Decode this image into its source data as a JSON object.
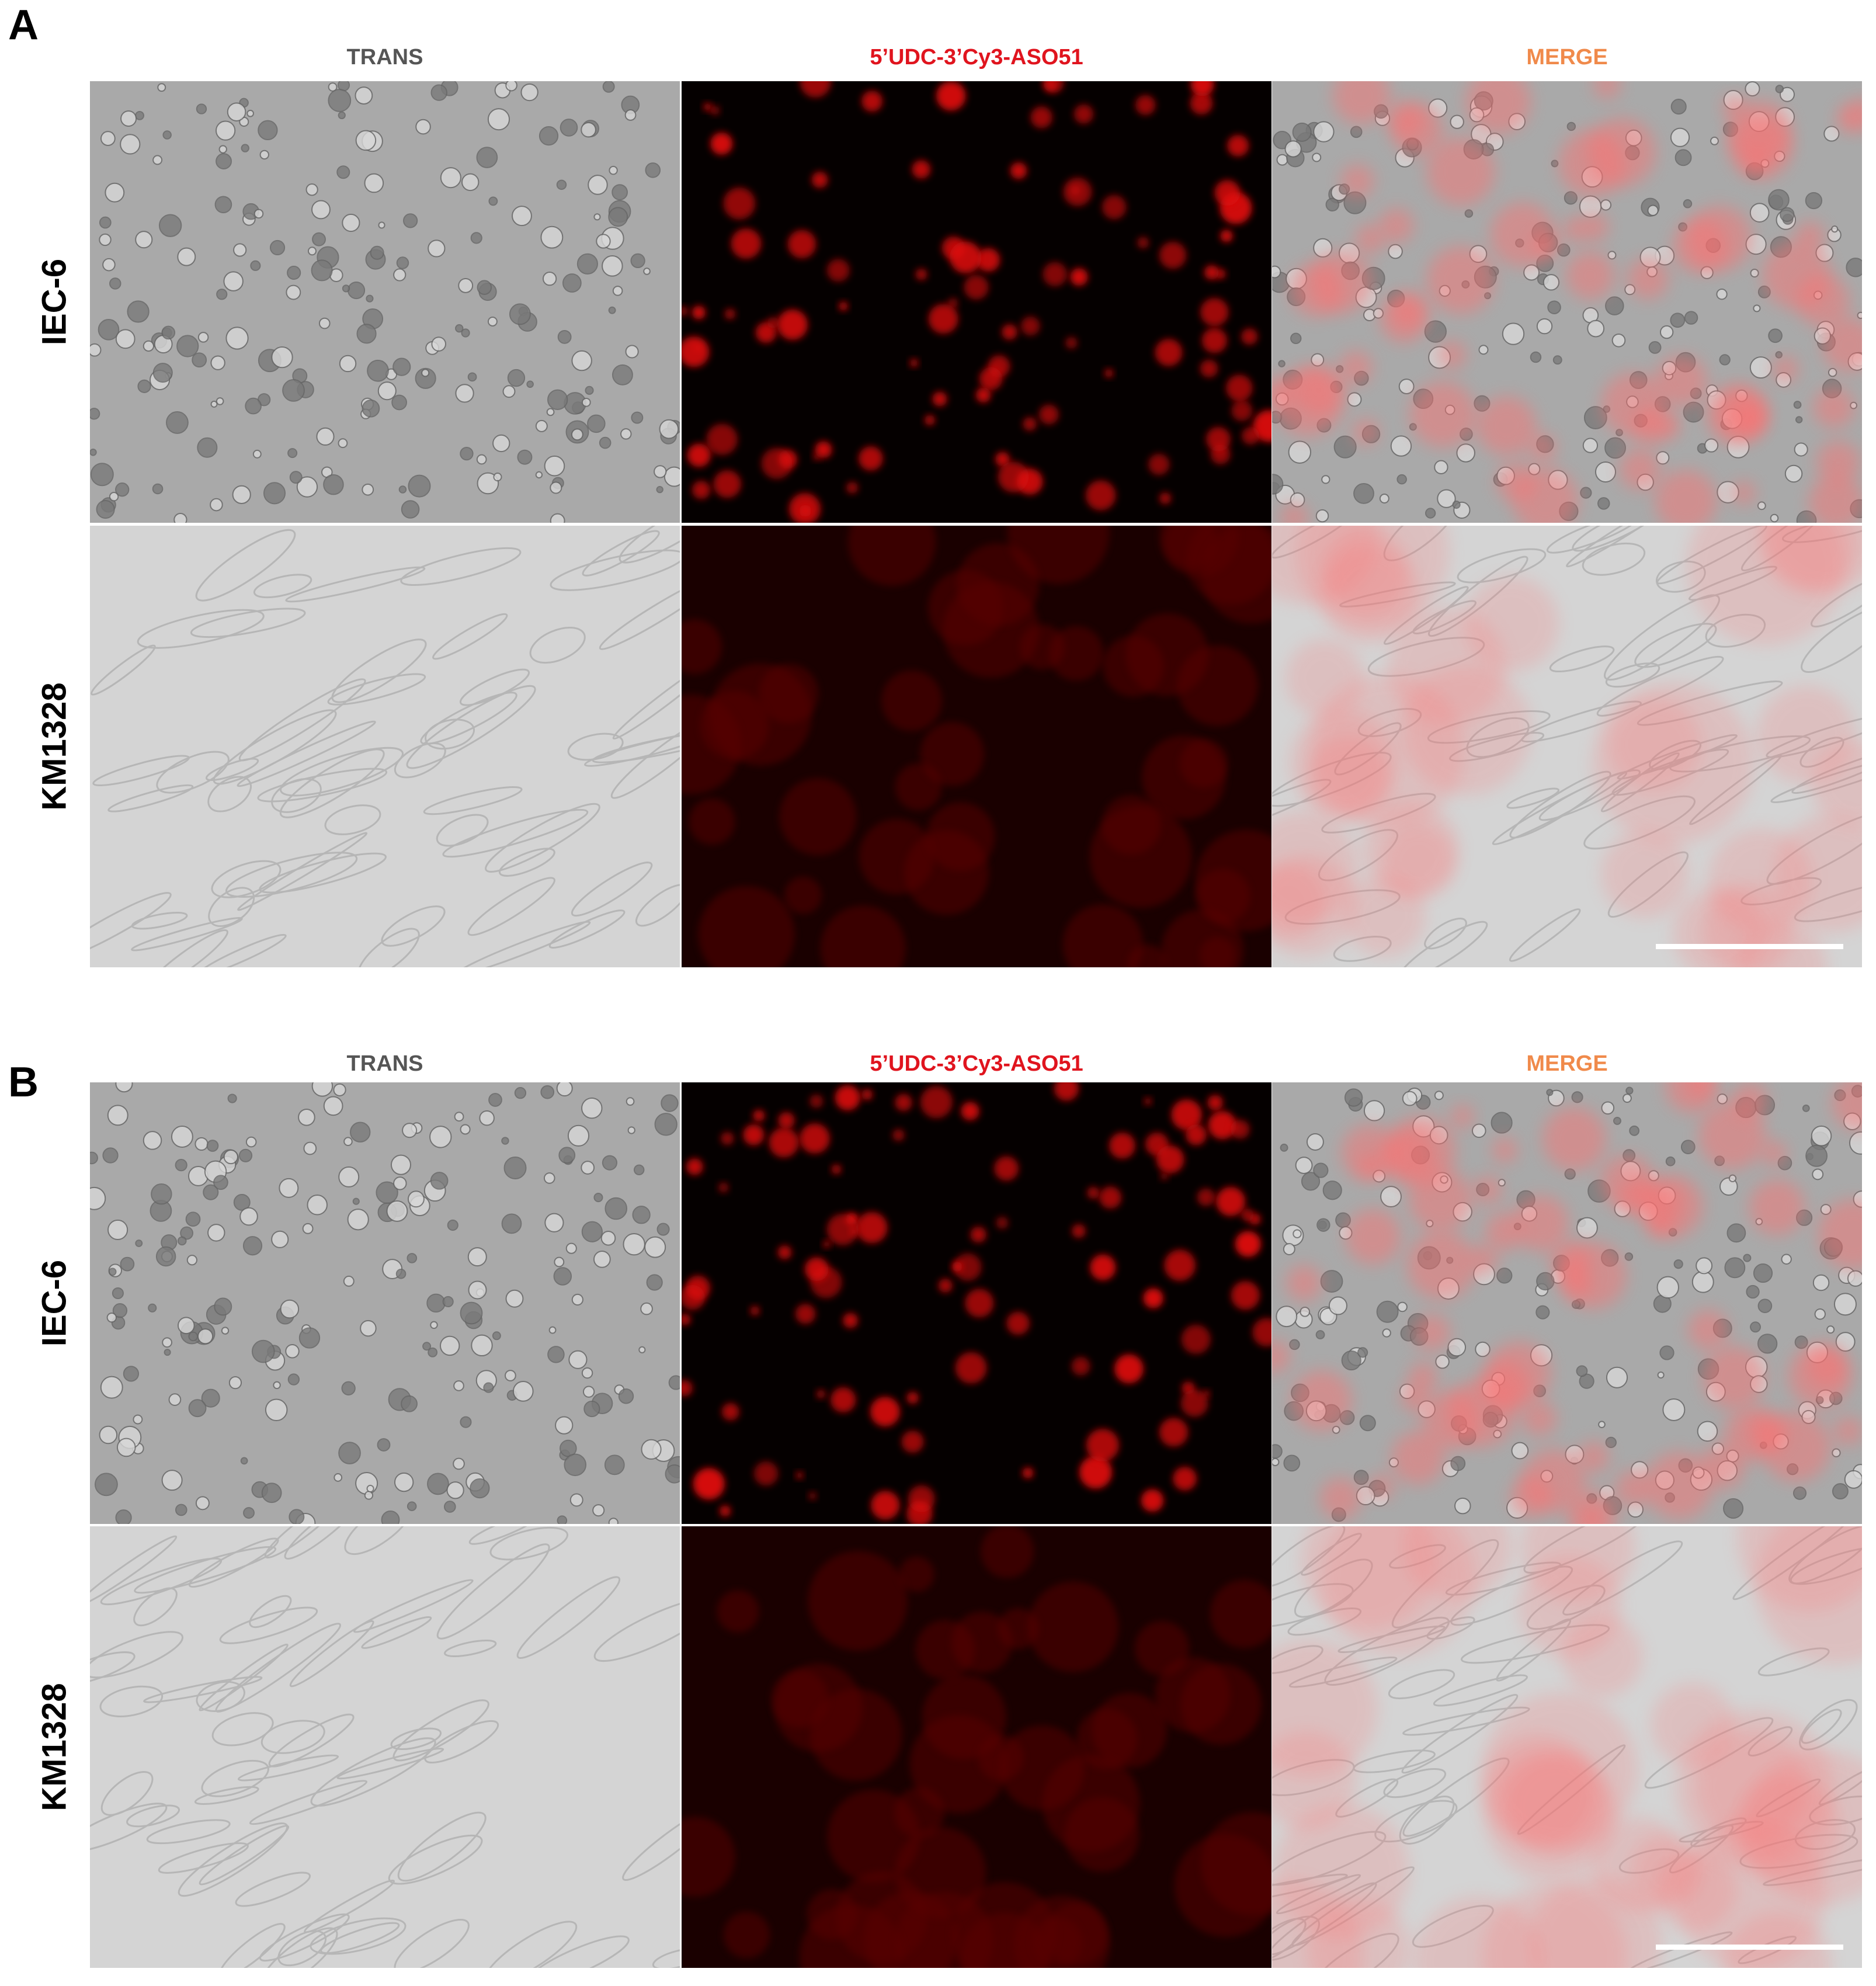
{
  "panels": [
    {
      "label": "A",
      "columns": [
        "TRANS",
        "5’UDC-3’Cy3-ASO51",
        "MERGE"
      ],
      "rows": [
        "IEC-6",
        "KM1328"
      ]
    },
    {
      "label": "B",
      "columns": [
        "TRANS",
        "5’UDC-3’Cy3-ASO51",
        "MERGE"
      ],
      "rows": [
        "IEC-6",
        "KM1328"
      ]
    }
  ]
}
